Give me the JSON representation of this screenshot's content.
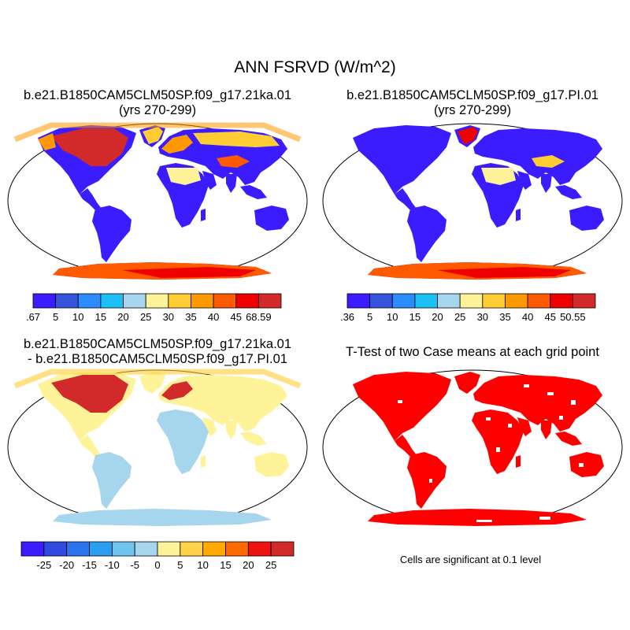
{
  "main_title": "ANN FSRVD (W/m^2)",
  "panels": [
    {
      "id": "case1",
      "title_line1": "b.e21.B1850CAM5CLM50SP.f09_g17.21ka.01",
      "title_line2": "(yrs 270-299)"
    },
    {
      "id": "case2",
      "title_line1": "b.e21.B1850CAM5CLM50SP.f09_g17.PI.01",
      "title_line2": "(yrs 270-299)"
    },
    {
      "id": "diff",
      "title_line1": "b.e21.B1850CAM5CLM50SP.f09_g17.21ka.01",
      "title_line2": "- b.e21.B1850CAM5CLM50SP.f09_g17.PI.01"
    },
    {
      "id": "ttest",
      "title_line1": "T-Test of two Case means at each grid point"
    }
  ],
  "colorbars": {
    "case1": {
      "colors": [
        "#3b1cff",
        "#3553dd",
        "#2b8cff",
        "#1cc0f5",
        "#a6d5ee",
        "#fff399",
        "#ffcc33",
        "#ff9900",
        "#ff5a00",
        "#ee0000",
        "#d22a2a"
      ],
      "labels": [
        ".67",
        "5",
        "10",
        "15",
        "20",
        "25",
        "30",
        "35",
        "40",
        "45",
        "68.59"
      ]
    },
    "case2": {
      "colors": [
        "#3b1cff",
        "#3553dd",
        "#2b8cff",
        "#1cc0f5",
        "#a6d5ee",
        "#fff399",
        "#ffcc33",
        "#ff9900",
        "#ff5a00",
        "#ee0000",
        "#d22a2a"
      ],
      "labels": [
        ".36",
        "5",
        "10",
        "15",
        "20",
        "25",
        "30",
        "35",
        "40",
        "45",
        "50.55"
      ]
    },
    "diff": {
      "colors": [
        "#3b1cff",
        "#3049e0",
        "#2c74ee",
        "#2a9ff0",
        "#6fc3ef",
        "#a6d5ee",
        "#fff399",
        "#ffd24a",
        "#ffaa00",
        "#ff6a00",
        "#ee1111",
        "#d22a2a"
      ],
      "labels": [
        "-25",
        "-20",
        "-15",
        "-10",
        "-5",
        "0",
        "5",
        "10",
        "15",
        "20",
        "25"
      ]
    }
  },
  "ttest_note": "Cells are significant at 0.1 level",
  "significance_color": "#ff0000"
}
